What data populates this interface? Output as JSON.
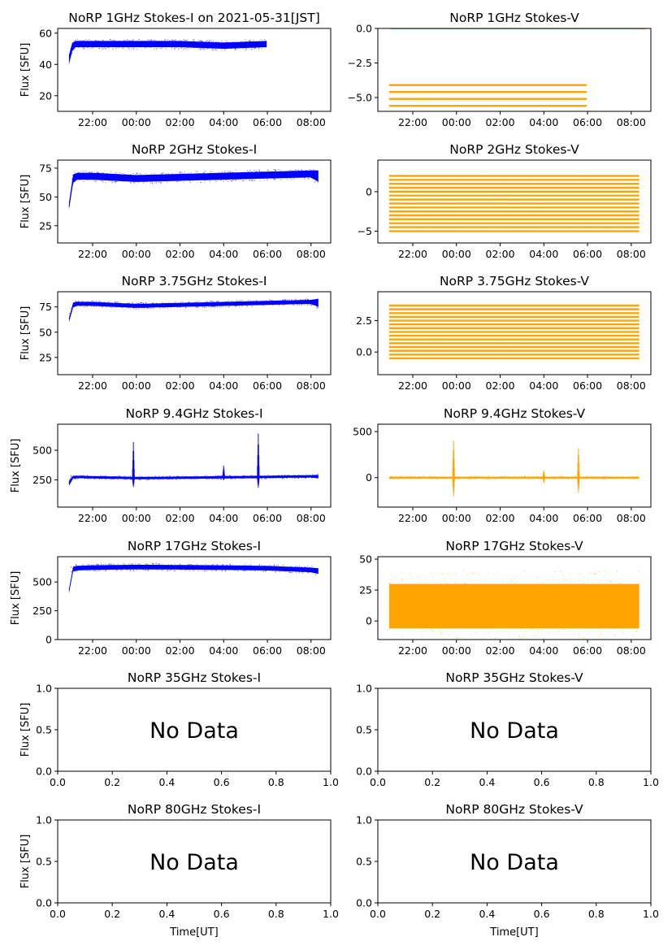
{
  "figure": {
    "xlabel": "Time[UT]",
    "ylabel": "Flux [SFU]"
  },
  "styles": {
    "stokes_i_color": "#0000ff",
    "stokes_v_color": "#ffa500",
    "axes_color": "#000000"
  },
  "chart_data": [
    {
      "type": "scatter",
      "title": "NoRP 1GHz Stokes-I on 2021-05-31[JST]",
      "ylabel": "Flux [SFU]",
      "has_data": true,
      "color": "#0000ff",
      "x_ticks": [
        "22:00",
        "00:00",
        "02:00",
        "04:00",
        "06:00",
        "08:00"
      ],
      "y_ticks": [
        "20",
        "40",
        "60"
      ],
      "ylim": [
        10,
        63
      ],
      "series": [
        {
          "x": [
            "20:55",
            "21:00",
            "21:10",
            "22:00",
            "00:00",
            "02:00",
            "04:00",
            "05:58"
          ],
          "y_center": [
            43,
            50,
            53,
            53,
            53,
            53,
            52,
            53
          ],
          "y_spread": [
            3,
            3,
            2,
            2,
            2,
            2,
            2,
            2
          ]
        }
      ]
    },
    {
      "type": "scatter",
      "title": "NoRP 1GHz Stokes-V",
      "ylabel": "",
      "has_data": true,
      "color": "#ffa500",
      "x_ticks": [
        "22:00",
        "00:00",
        "02:00",
        "04:00",
        "06:00",
        "08:00"
      ],
      "y_ticks": [
        "0.0",
        "−2.5",
        "−5.0"
      ],
      "ylim": [
        -6.0,
        0.0
      ],
      "levels": [
        -4.1,
        -4.6,
        -5.1,
        -5.6
      ],
      "level_range": [
        "20:55",
        "05:58"
      ],
      "extra": [
        {
          "x": [
            "21:00",
            "05:58"
          ],
          "y": 0.0
        },
        {
          "x": [
            "05:58",
            "08:40"
          ],
          "y": 0.0
        }
      ]
    },
    {
      "type": "scatter",
      "title": "NoRP 2GHz Stokes-I",
      "ylabel": "Flux [SFU]",
      "has_data": true,
      "color": "#0000ff",
      "x_ticks": [
        "22:00",
        "00:00",
        "02:00",
        "04:00",
        "06:00",
        "08:00"
      ],
      "y_ticks": [
        "25",
        "50",
        "75"
      ],
      "ylim": [
        10,
        82
      ],
      "series": [
        {
          "x": [
            "20:55",
            "21:00",
            "21:10",
            "22:00",
            "00:00",
            "02:00",
            "04:00",
            "06:00",
            "08:00",
            "08:20"
          ],
          "y_center": [
            42,
            62,
            68,
            68,
            66,
            67,
            68,
            69,
            70,
            68
          ],
          "y_spread": [
            3,
            5,
            3,
            3,
            3,
            3,
            3,
            3,
            3,
            5
          ]
        }
      ]
    },
    {
      "type": "scatter",
      "title": "NoRP 2GHz Stokes-V",
      "ylabel": "",
      "has_data": true,
      "color": "#ffa500",
      "x_ticks": [
        "22:00",
        "00:00",
        "02:00",
        "04:00",
        "06:00",
        "08:00"
      ],
      "y_ticks": [
        "0",
        "−5"
      ],
      "ylim": [
        -6.5,
        4.0
      ],
      "levels": [
        2.0,
        1.5,
        1.0,
        0.5,
        0.0,
        -0.5,
        -1.0,
        -1.5,
        -2.0,
        -2.5,
        -3.0,
        -3.5,
        -4.0,
        -4.5,
        -5.0
      ],
      "level_range": [
        "20:55",
        "08:22"
      ]
    },
    {
      "type": "scatter",
      "title": "NoRP 3.75GHz Stokes-I",
      "ylabel": "Flux [SFU]",
      "has_data": true,
      "color": "#0000ff",
      "x_ticks": [
        "22:00",
        "00:00",
        "02:00",
        "04:00",
        "06:00",
        "08:00"
      ],
      "y_ticks": [
        "25",
        "50",
        "75"
      ],
      "ylim": [
        8,
        90
      ],
      "series": [
        {
          "x": [
            "20:55",
            "21:00",
            "21:10",
            "22:00",
            "00:00",
            "02:00",
            "04:00",
            "06:00",
            "08:00",
            "08:20"
          ],
          "y_center": [
            62,
            75,
            78,
            78,
            76,
            77,
            78,
            79,
            80,
            79
          ],
          "y_spread": [
            2,
            3,
            2,
            2,
            2,
            2,
            2,
            2,
            2,
            4
          ]
        }
      ]
    },
    {
      "type": "scatter",
      "title": "NoRP 3.75GHz Stokes-V",
      "ylabel": "",
      "has_data": true,
      "color": "#ffa500",
      "x_ticks": [
        "22:00",
        "00:00",
        "02:00",
        "04:00",
        "06:00",
        "08:00"
      ],
      "y_ticks": [
        "2.5",
        "0.0"
      ],
      "ylim": [
        -1.8,
        4.8
      ],
      "levels": [
        3.7,
        3.4,
        3.1,
        2.8,
        2.5,
        2.2,
        1.9,
        1.6,
        1.3,
        1.0,
        0.7,
        0.4,
        0.1,
        -0.2,
        -0.5
      ],
      "level_range": [
        "20:55",
        "08:22"
      ]
    },
    {
      "type": "scatter",
      "title": "NoRP 9.4GHz Stokes-I",
      "ylabel": "Flux [SFU]",
      "has_data": true,
      "color": "#0000ff",
      "x_ticks": [
        "22:00",
        "00:00",
        "02:00",
        "04:00",
        "06:00",
        "08:00"
      ],
      "y_ticks": [
        "250",
        "500"
      ],
      "ylim": [
        20,
        720
      ],
      "series": [
        {
          "x": [
            "20:55",
            "21:00",
            "21:10",
            "22:00",
            "00:00",
            "02:00",
            "04:00",
            "06:00",
            "08:00",
            "08:20"
          ],
          "y_center": [
            220,
            270,
            275,
            272,
            265,
            268,
            272,
            275,
            280,
            278
          ],
          "y_spread": [
            20,
            15,
            10,
            10,
            10,
            10,
            10,
            10,
            10,
            15
          ]
        }
      ],
      "bursts": [
        {
          "x": "23:52",
          "peak": 570
        },
        {
          "x": "04:00",
          "peak": 370
        },
        {
          "x": "05:35",
          "peak": 640
        }
      ]
    },
    {
      "type": "scatter",
      "title": "NoRP 9.4GHz Stokes-V",
      "ylabel": "",
      "has_data": true,
      "color": "#ffa500",
      "x_ticks": [
        "22:00",
        "00:00",
        "02:00",
        "04:00",
        "06:00",
        "08:00"
      ],
      "y_ticks": [
        "500",
        "0"
      ],
      "ylim": [
        -320,
        580
      ],
      "series": [
        {
          "x": [
            "20:55",
            "08:22"
          ],
          "y_center": [
            0,
            0
          ],
          "y_spread": [
            10,
            10
          ]
        }
      ],
      "bursts": [
        {
          "x": "23:52",
          "peak": 400,
          "low": -200
        },
        {
          "x": "04:00",
          "peak": 80,
          "low": -60
        },
        {
          "x": "05:35",
          "peak": 320,
          "low": -160
        }
      ]
    },
    {
      "type": "scatter",
      "title": "NoRP 17GHz Stokes-I",
      "ylabel": "Flux [SFU]",
      "has_data": true,
      "color": "#0000ff",
      "x_ticks": [
        "22:00",
        "00:00",
        "02:00",
        "04:00",
        "06:00",
        "08:00"
      ],
      "y_ticks": [
        "0",
        "250",
        "500"
      ],
      "ylim": [
        0,
        720
      ],
      "series": [
        {
          "x": [
            "20:55",
            "21:00",
            "21:10",
            "22:00",
            "00:00",
            "02:00",
            "04:00",
            "06:00",
            "08:00",
            "08:20"
          ],
          "y_center": [
            420,
            600,
            620,
            625,
            630,
            628,
            625,
            620,
            605,
            595
          ],
          "y_spread": [
            20,
            20,
            20,
            20,
            20,
            20,
            20,
            20,
            20,
            25
          ]
        }
      ]
    },
    {
      "type": "scatter",
      "title": "NoRP 17GHz Stokes-V",
      "ylabel": "",
      "has_data": true,
      "color": "#ffa500",
      "x_ticks": [
        "22:00",
        "00:00",
        "02:00",
        "04:00",
        "06:00",
        "08:00"
      ],
      "y_ticks": [
        "0",
        "25",
        "50"
      ],
      "ylim": [
        -15,
        52
      ],
      "series": [
        {
          "x": [
            "20:55",
            "08:22"
          ],
          "y_center": [
            12,
            12
          ],
          "y_spread": [
            18,
            18
          ]
        }
      ]
    },
    {
      "type": "scatter",
      "title": "NoRP 35GHz Stokes-I",
      "ylabel": "Flux [SFU]",
      "has_data": false,
      "placeholder": "No Data",
      "x_ticks": [
        "0.0",
        "0.2",
        "0.4",
        "0.6",
        "0.8",
        "1.0"
      ],
      "y_ticks": [
        "0.0",
        "0.5",
        "1.0"
      ],
      "xlim": [
        0,
        1
      ],
      "ylim": [
        0,
        1
      ]
    },
    {
      "type": "scatter",
      "title": "NoRP 35GHz Stokes-V",
      "ylabel": "",
      "has_data": false,
      "placeholder": "No Data",
      "x_ticks": [
        "0.0",
        "0.2",
        "0.4",
        "0.6",
        "0.8",
        "1.0"
      ],
      "y_ticks": [
        "0.0",
        "0.5",
        "1.0"
      ],
      "xlim": [
        0,
        1
      ],
      "ylim": [
        0,
        1
      ]
    },
    {
      "type": "scatter",
      "title": "NoRP 80GHz Stokes-I",
      "ylabel": "Flux [SFU]",
      "xlabel": "Time[UT]",
      "has_data": false,
      "placeholder": "No Data",
      "x_ticks": [
        "0.0",
        "0.2",
        "0.4",
        "0.6",
        "0.8",
        "1.0"
      ],
      "y_ticks": [
        "0.0",
        "0.5",
        "1.0"
      ],
      "xlim": [
        0,
        1
      ],
      "ylim": [
        0,
        1
      ]
    },
    {
      "type": "scatter",
      "title": "NoRP 80GHz Stokes-V",
      "ylabel": "",
      "xlabel": "Time[UT]",
      "has_data": false,
      "placeholder": "No Data",
      "x_ticks": [
        "0.0",
        "0.2",
        "0.4",
        "0.6",
        "0.8",
        "1.0"
      ],
      "y_ticks": [
        "0.0",
        "0.5",
        "1.0"
      ],
      "xlim": [
        0,
        1
      ],
      "ylim": [
        0,
        1
      ]
    }
  ]
}
